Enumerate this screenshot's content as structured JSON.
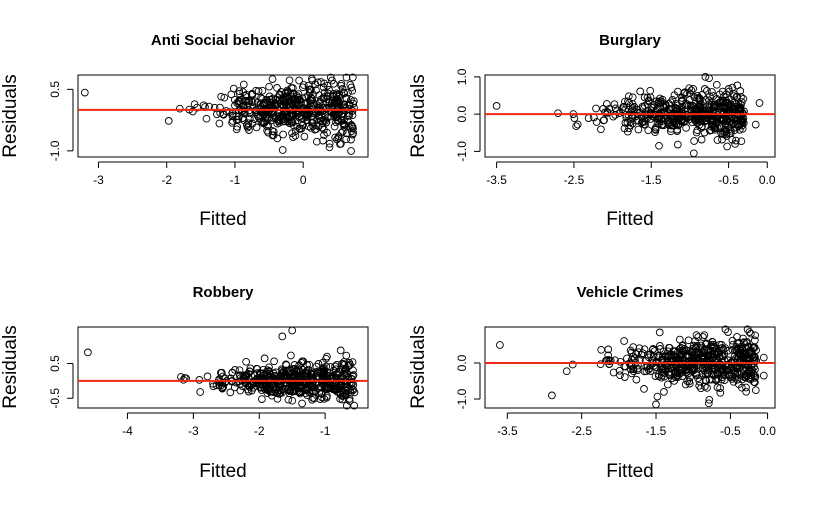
{
  "figure": {
    "layout": "2x2 grid of residual-vs-fitted scatter plots"
  },
  "chart_data": [
    {
      "type": "scatter",
      "title": "Anti Social behavior",
      "xlabel": "Fitted",
      "ylabel": "Residuals",
      "xlim": [
        -3.3,
        0.95
      ],
      "ylim": [
        -1.15,
        0.85
      ],
      "xticks": [
        -3,
        -2,
        -1,
        0
      ],
      "xtick_labels": [
        "-3",
        "-2",
        "-1",
        "0"
      ],
      "yticks": [
        -1.0,
        0.5
      ],
      "ytick_labels": [
        "-1.0",
        "0.5"
      ],
      "reference_line": {
        "y": 0,
        "color": "#ee2a17"
      },
      "cloud": {
        "x_min": -2.55,
        "x_max": 0.75,
        "x_center": -0.1,
        "x_spread": 0.6,
        "y_spread_min": 0.1,
        "y_spread_max": 0.38,
        "count": 520,
        "seed": 11
      },
      "extra_points": [
        {
          "x": -3.2,
          "y": 0.42
        },
        {
          "x": -0.45,
          "y": 0.75
        },
        {
          "x": -0.2,
          "y": 0.72
        },
        {
          "x": -0.3,
          "y": -0.98
        },
        {
          "x": 0.3,
          "y": 0.55
        },
        {
          "x": 0.6,
          "y": 0.12
        }
      ]
    },
    {
      "type": "scatter",
      "title": "Burglary",
      "xlabel": "Fitted",
      "ylabel": "Residuals",
      "xlim": [
        -3.65,
        0.1
      ],
      "ylim": [
        -1.15,
        1.05
      ],
      "xticks": [
        -3.5,
        -2.5,
        -1.5,
        -0.5,
        0.0
      ],
      "xtick_labels": [
        "-3.5",
        "-2.5",
        "-1.5",
        "-0.5",
        "0.0"
      ],
      "yticks": [
        -1.0,
        0.0,
        1.0
      ],
      "ytick_labels": [
        "-1.0",
        "0.0",
        "1.0"
      ],
      "reference_line": {
        "y": 0,
        "color": "#ee2a17"
      },
      "cloud": {
        "x_min": -3.0,
        "x_max": -0.3,
        "x_center": -0.95,
        "x_spread": 0.55,
        "y_spread_min": 0.1,
        "y_spread_max": 0.32,
        "count": 520,
        "seed": 23
      },
      "extra_points": [
        {
          "x": -3.5,
          "y": 0.22
        },
        {
          "x": -0.8,
          "y": 1.0
        },
        {
          "x": -0.95,
          "y": -1.05
        },
        {
          "x": -0.1,
          "y": 0.3
        },
        {
          "x": -0.15,
          "y": -0.28
        },
        {
          "x": -1.4,
          "y": -0.85
        }
      ]
    },
    {
      "type": "scatter",
      "title": "Robbery",
      "xlabel": "Fitted",
      "ylabel": "Residuals",
      "xlim": [
        -4.75,
        -0.35
      ],
      "ylim": [
        -0.78,
        1.55
      ],
      "xticks": [
        -4,
        -3,
        -2,
        -1
      ],
      "xtick_labels": [
        "-4",
        "-3",
        "-2",
        "-1"
      ],
      "yticks": [
        -0.5,
        0.5
      ],
      "ytick_labels": [
        "-0.5",
        "0.5"
      ],
      "reference_line": {
        "y": 0,
        "color": "#ee2a17"
      },
      "cloud": {
        "x_min": -3.95,
        "x_max": -0.55,
        "x_center": -1.45,
        "x_spread": 0.6,
        "y_spread_min": 0.05,
        "y_spread_max": 0.32,
        "count": 520,
        "seed": 37
      },
      "extra_points": [
        {
          "x": -4.6,
          "y": 0.82
        },
        {
          "x": -1.65,
          "y": 1.28
        },
        {
          "x": -1.5,
          "y": 1.45
        },
        {
          "x": -1.35,
          "y": -0.65
        },
        {
          "x": -0.6,
          "y": 0.05
        },
        {
          "x": -2.2,
          "y": 0.55
        }
      ]
    },
    {
      "type": "scatter",
      "title": "Vehicle Crimes",
      "xlabel": "Fitted",
      "ylabel": "Residuals",
      "xlim": [
        -3.8,
        0.1
      ],
      "ylim": [
        -1.25,
        1.0
      ],
      "xticks": [
        -3.5,
        -2.5,
        -1.5,
        -0.5,
        0.0
      ],
      "xtick_labels": [
        "-3.5",
        "-2.5",
        "-1.5",
        "-0.5",
        "0.0"
      ],
      "yticks": [
        -1.0,
        0.0
      ],
      "ytick_labels": [
        "-1.0",
        "0.0"
      ],
      "reference_line": {
        "y": 0,
        "color": "#ee2a17"
      },
      "cloud": {
        "x_min": -3.0,
        "x_max": -0.15,
        "x_center": -0.85,
        "x_spread": 0.6,
        "y_spread_min": 0.15,
        "y_spread_max": 0.38,
        "count": 560,
        "seed": 53
      },
      "extra_points": [
        {
          "x": -3.6,
          "y": 0.5
        },
        {
          "x": -2.9,
          "y": -0.9
        },
        {
          "x": -1.45,
          "y": 0.85
        },
        {
          "x": -1.5,
          "y": -1.15
        },
        {
          "x": -0.05,
          "y": 0.15
        },
        {
          "x": -0.05,
          "y": -0.35
        }
      ]
    }
  ]
}
